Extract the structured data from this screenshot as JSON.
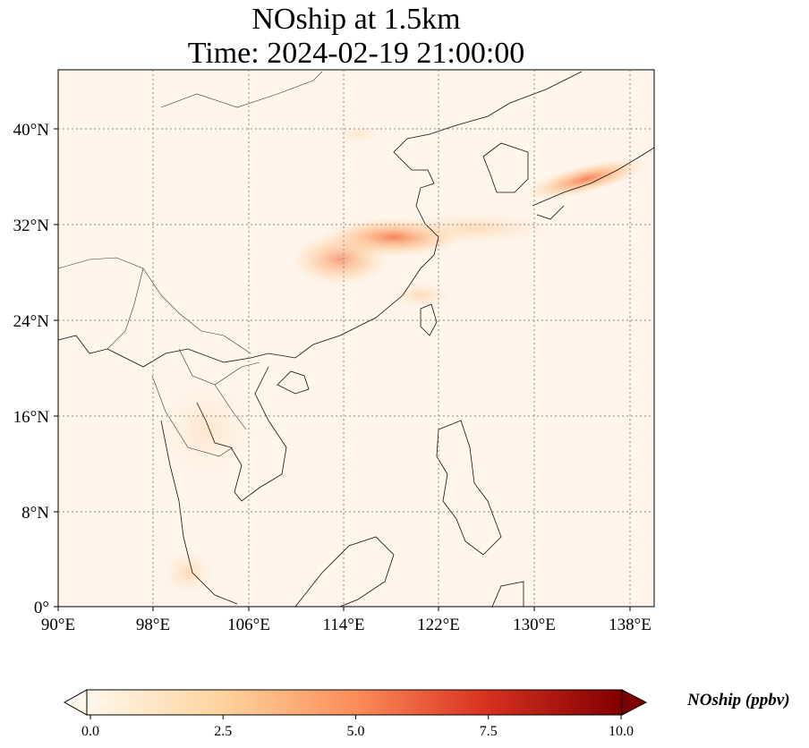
{
  "title": {
    "line1": "NOship at 1.5km",
    "line2": "Time: 2024-02-19 21:00:00"
  },
  "map": {
    "lon_ticks": [
      "90°E",
      "98°E",
      "106°E",
      "114°E",
      "122°E",
      "130°E",
      "138°E"
    ],
    "lat_ticks": [
      "0°",
      "8°N",
      "16°N",
      "24°N",
      "32°N",
      "40°N"
    ],
    "gridlines": "dotted",
    "background_color": "#fff5eb"
  },
  "colorbar": {
    "label": "NOship (ppbv)",
    "ticks": [
      "0.0",
      "2.5",
      "5.0",
      "7.5",
      "10.0"
    ],
    "colormap": "OrRd",
    "colors": [
      "#fff7ec",
      "#fdd49e",
      "#fc8d59",
      "#d7301f",
      "#7f0000"
    ],
    "extend": "both"
  }
}
